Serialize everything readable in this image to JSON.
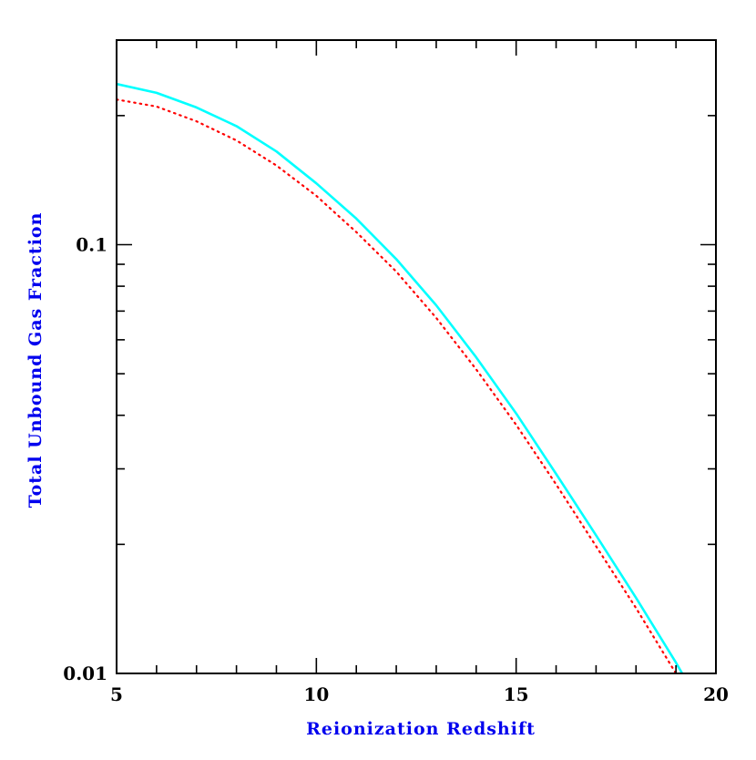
{
  "chart_data": {
    "type": "line",
    "xlabel": "Reionization Redshift",
    "ylabel": "Total Unbound Gas Fraction",
    "xlim": [
      5,
      20
    ],
    "ylim": [
      0.01,
      0.3
    ],
    "y_scale": "log",
    "grid": false,
    "x_ticks": [
      5,
      10,
      15,
      20
    ],
    "x_tick_labels": [
      "5",
      "10",
      "15",
      "20"
    ],
    "x_minor_ticks": [
      6,
      7,
      8,
      9,
      11,
      12,
      13,
      14,
      16,
      17,
      18,
      19
    ],
    "y_ticks": [
      0.01,
      0.1
    ],
    "y_tick_labels": [
      "0.01",
      "0.1"
    ],
    "y_minor_ticks": [
      0.02,
      0.03,
      0.04,
      0.05,
      0.06,
      0.07,
      0.08,
      0.09,
      0.2
    ],
    "colors": {
      "xlabel": "#0000ee",
      "ylabel": "#0000ee",
      "axes": "#000000"
    },
    "series": [
      {
        "style": "solid",
        "color": "#00ffff",
        "x": [
          5,
          6,
          7,
          8,
          9,
          10,
          11,
          12,
          13,
          14,
          15,
          16,
          17,
          18,
          19,
          20
        ],
        "y": [
          0.237,
          0.226,
          0.209,
          0.189,
          0.165,
          0.139,
          0.115,
          0.0925,
          0.0722,
          0.0546,
          0.0404,
          0.0292,
          0.021,
          0.015,
          0.0106,
          0.0073
        ]
      },
      {
        "style": "dotted",
        "color": "#ff0000",
        "x": [
          5,
          6,
          7,
          8,
          9,
          10,
          11,
          12,
          13,
          14,
          15,
          16,
          17,
          18,
          19,
          20
        ],
        "y": [
          0.218,
          0.21,
          0.194,
          0.175,
          0.153,
          0.13,
          0.107,
          0.0865,
          0.0675,
          0.0512,
          0.038,
          0.0276,
          0.0198,
          0.0142,
          0.01,
          0.0069
        ]
      }
    ]
  }
}
